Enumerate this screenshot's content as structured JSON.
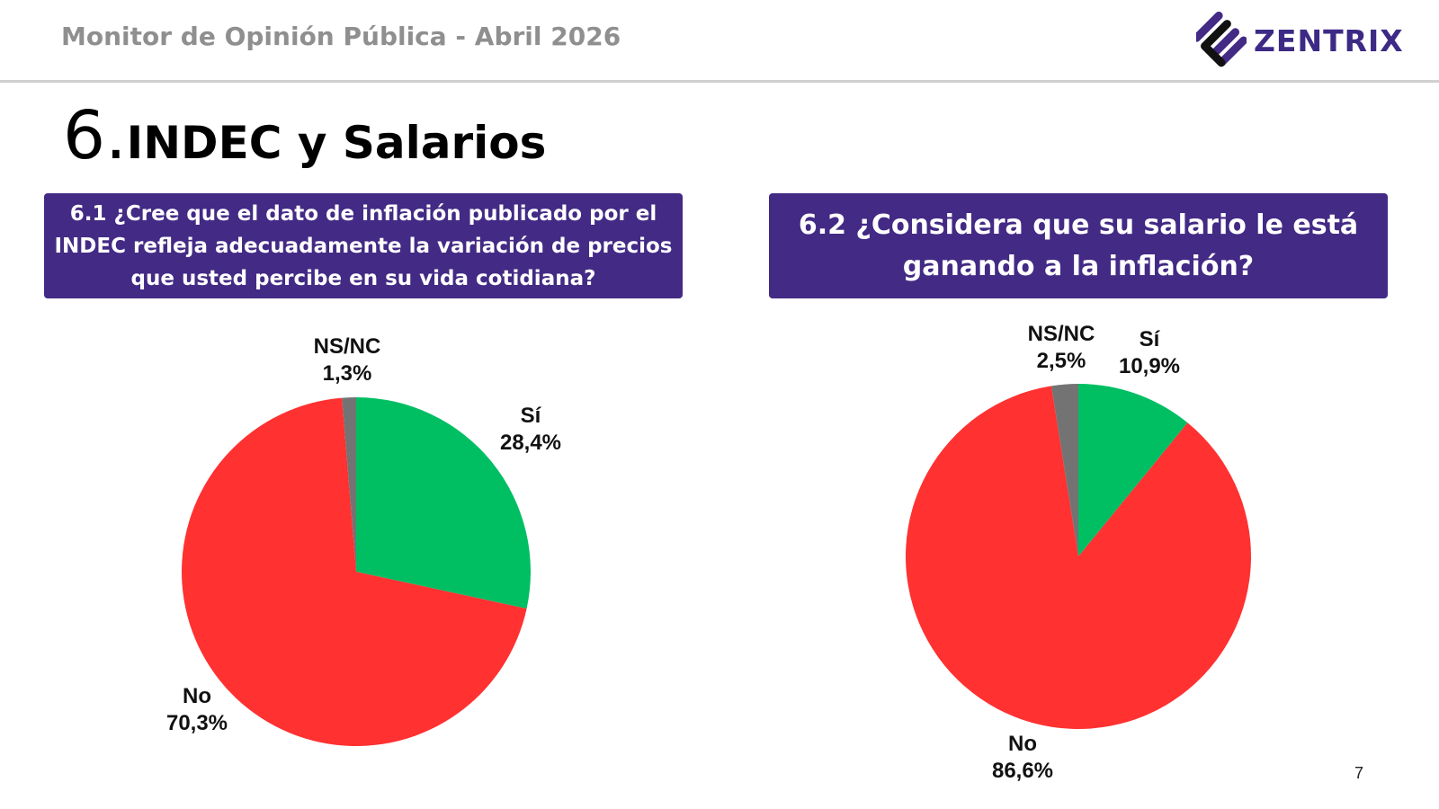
{
  "header": {
    "title": "Monitor de Opinión Pública - Abril 2026",
    "logo_text": "ZENTRIX"
  },
  "section": {
    "number": "6.",
    "title": "INDEC y Salarios"
  },
  "colors": {
    "purple": "#432a85",
    "si": "#00bf63",
    "no": "#ff3131",
    "nsnc": "#737373"
  },
  "page_number": "7",
  "chart_data": [
    {
      "type": "pie",
      "title": "6.1 ¿Cree que el dato de inflación publicado por el INDEC refleja adecuadamente la variación de precios que usted percibe en su vida cotidiana?",
      "slices": [
        {
          "label": "Sí",
          "value": 28.4,
          "display": "28,4%",
          "color": "#00bf63"
        },
        {
          "label": "No",
          "value": 70.3,
          "display": "70,3%",
          "color": "#ff3131"
        },
        {
          "label": "NS/NC",
          "value": 1.3,
          "display": "1,3%",
          "color": "#737373"
        }
      ]
    },
    {
      "type": "pie",
      "title": "6.2 ¿Considera que su salario le está ganando a la inflación?",
      "slices": [
        {
          "label": "Sí",
          "value": 10.9,
          "display": "10,9%",
          "color": "#00bf63"
        },
        {
          "label": "No",
          "value": 86.6,
          "display": "86,6%",
          "color": "#ff3131"
        },
        {
          "label": "NS/NC",
          "value": 2.5,
          "display": "2,5%",
          "color": "#737373"
        }
      ]
    }
  ]
}
